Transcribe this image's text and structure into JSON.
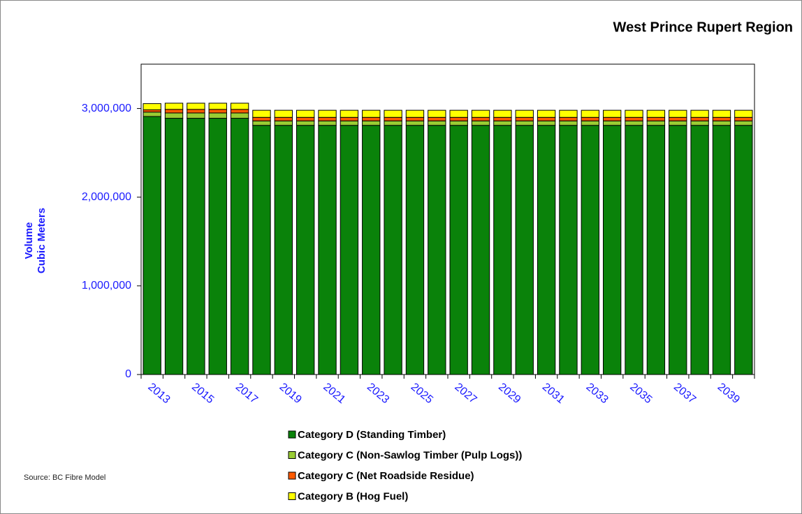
{
  "chart_data": {
    "type": "stacked_bar",
    "title": "West Prince Rupert Region",
    "ylabel_lines": [
      "Volume",
      "Cubic Meters"
    ],
    "source": "Source: BC Fibre Model",
    "categories": [
      "2013",
      null,
      "2015",
      null,
      "2017",
      null,
      "2019",
      null,
      "2021",
      null,
      "2023",
      null,
      "2025",
      null,
      "2027",
      null,
      "2029",
      null,
      "2031",
      null,
      "2033",
      null,
      "2035",
      null,
      "2037",
      null,
      "2039",
      null
    ],
    "series": [
      {
        "name": "Category D (Standing Timber)",
        "color": "#0a820a",
        "values": [
          2910000,
          2890000,
          2890000,
          2890000,
          2890000,
          2810000,
          2810000,
          2810000,
          2810000,
          2810000,
          2810000,
          2810000,
          2810000,
          2810000,
          2810000,
          2810000,
          2810000,
          2810000,
          2810000,
          2810000,
          2810000,
          2810000,
          2810000,
          2810000,
          2810000,
          2810000,
          2810000,
          2810000
        ]
      },
      {
        "name": "Category C (Non-Sawlog Timber (Pulp Logs))",
        "color": "#99cc33",
        "values": [
          50000,
          60000,
          60000,
          60000,
          60000,
          50000,
          50000,
          50000,
          50000,
          50000,
          50000,
          50000,
          50000,
          50000,
          50000,
          50000,
          50000,
          50000,
          50000,
          50000,
          50000,
          50000,
          50000,
          50000,
          50000,
          50000,
          50000,
          50000
        ]
      },
      {
        "name": "Category C (Net Roadside Residue)",
        "color": "#ff5a00",
        "values": [
          25000,
          40000,
          40000,
          40000,
          40000,
          40000,
          40000,
          40000,
          40000,
          40000,
          40000,
          40000,
          40000,
          40000,
          40000,
          40000,
          40000,
          40000,
          40000,
          40000,
          40000,
          40000,
          40000,
          40000,
          40000,
          40000,
          40000,
          40000
        ]
      },
      {
        "name": "Category B (Hog Fuel)",
        "color": "#ffff00",
        "values": [
          70000,
          70000,
          70000,
          70000,
          70000,
          80000,
          80000,
          80000,
          80000,
          80000,
          80000,
          80000,
          80000,
          80000,
          80000,
          80000,
          80000,
          80000,
          80000,
          80000,
          80000,
          80000,
          80000,
          80000,
          80000,
          80000,
          80000,
          80000
        ]
      }
    ],
    "ylim": [
      0,
      3500000
    ],
    "yticks": [
      0,
      {
        "value": 1000000,
        "label": "1,000,000"
      },
      {
        "value": 2000000,
        "label": "2,000,000"
      },
      {
        "value": 3000000,
        "label": "3,000,000"
      }
    ],
    "legend": "bottom"
  }
}
